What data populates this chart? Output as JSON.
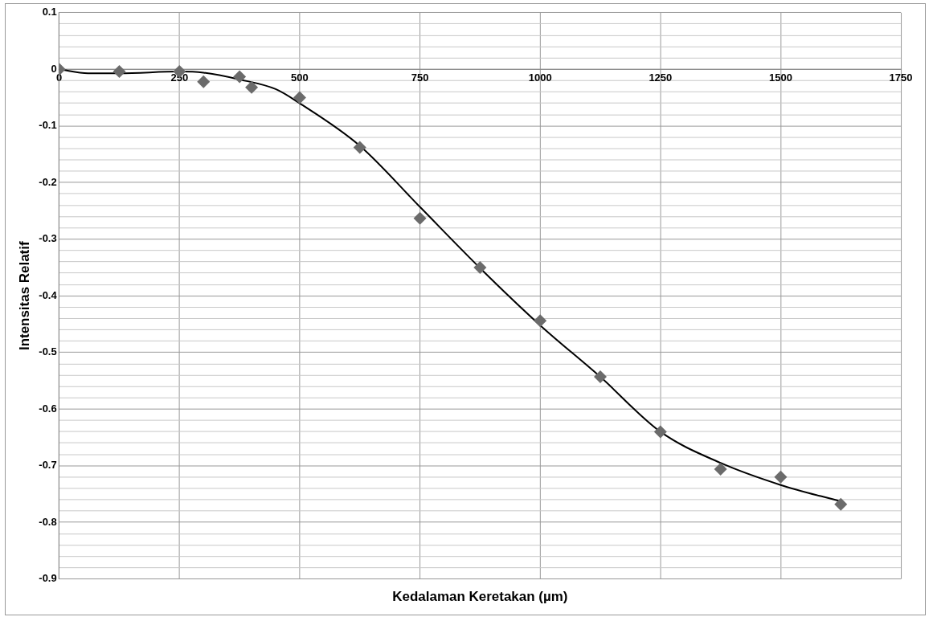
{
  "chart_data": {
    "type": "scatter",
    "xlabel": "Kedalaman Keretakan (µm)",
    "ylabel": "Intensitas Relatif",
    "x": [
      0,
      125,
      250,
      300,
      375,
      400,
      500,
      625,
      750,
      875,
      1000,
      1125,
      1250,
      1375,
      1500,
      1625
    ],
    "series": [
      {
        "color": "#6b6b6b",
        "values": [
          0,
          -0.004,
          -0.004,
          -0.022,
          -0.013,
          -0.032,
          -0.05,
          -0.138,
          -0.263,
          -0.35,
          -0.444,
          -0.543,
          -0.64,
          -0.706,
          -0.72,
          -0.768
        ]
      },
      {
        "type": "line",
        "color": "#000000",
        "marker": "none",
        "x": [
          0,
          60,
          125,
          250,
          300,
          375,
          450,
          500,
          625,
          750,
          875,
          1000,
          1125,
          1250,
          1375,
          1500,
          1625
        ],
        "values": [
          0,
          -0.007,
          -0.007,
          -0.004,
          -0.006,
          -0.018,
          -0.035,
          -0.06,
          -0.135,
          -0.243,
          -0.351,
          -0.452,
          -0.543,
          -0.64,
          -0.695,
          -0.734,
          -0.763
        ]
      }
    ],
    "marker": "diamond",
    "xlim": [
      0,
      1750
    ],
    "xticks": [
      0,
      250,
      500,
      750,
      1000,
      1250,
      1500,
      1750
    ],
    "ylim": [
      -0.9,
      0.1
    ],
    "yticks": [
      -0.9,
      {
        "value": -0.88,
        "label": null
      },
      {
        "value": -0.86,
        "label": null
      },
      {
        "value": -0.84,
        "label": null
      },
      {
        "value": -0.82,
        "label": null
      },
      -0.8,
      {
        "value": -0.78,
        "label": null
      },
      {
        "value": -0.76,
        "label": null
      },
      {
        "value": -0.74,
        "label": null
      },
      {
        "value": -0.72,
        "label": null
      },
      -0.7,
      {
        "value": -0.68,
        "label": null
      },
      {
        "value": -0.66,
        "label": null
      },
      {
        "value": -0.64,
        "label": null
      },
      {
        "value": -0.62,
        "label": null
      },
      -0.6,
      {
        "value": -0.58,
        "label": null
      },
      {
        "value": -0.56,
        "label": null
      },
      {
        "value": -0.54,
        "label": null
      },
      {
        "value": -0.52,
        "label": null
      },
      -0.5,
      {
        "value": -0.48,
        "label": null
      },
      {
        "value": -0.46,
        "label": null
      },
      {
        "value": -0.44,
        "label": null
      },
      {
        "value": -0.42,
        "label": null
      },
      -0.4,
      {
        "value": -0.38,
        "label": null
      },
      {
        "value": -0.36,
        "label": null
      },
      {
        "value": -0.34,
        "label": null
      },
      {
        "value": -0.32,
        "label": null
      },
      -0.3,
      {
        "value": -0.28,
        "label": null
      },
      {
        "value": -0.26,
        "label": null
      },
      {
        "value": -0.24,
        "label": null
      },
      {
        "value": -0.22,
        "label": null
      },
      -0.2,
      {
        "value": -0.18,
        "label": null
      },
      {
        "value": -0.16,
        "label": null
      },
      {
        "value": -0.14,
        "label": null
      },
      {
        "value": -0.12,
        "label": null
      },
      -0.1,
      {
        "value": -0.08,
        "label": null
      },
      {
        "value": -0.06,
        "label": null
      },
      {
        "value": -0.04,
        "label": null
      },
      {
        "value": -0.02,
        "label": null
      },
      0,
      {
        "value": 0.02,
        "label": null
      },
      {
        "value": 0.04,
        "label": null
      },
      {
        "value": 0.06,
        "label": null
      },
      {
        "value": 0.08,
        "label": null
      },
      0.1
    ],
    "grid": true,
    "legend": false
  }
}
